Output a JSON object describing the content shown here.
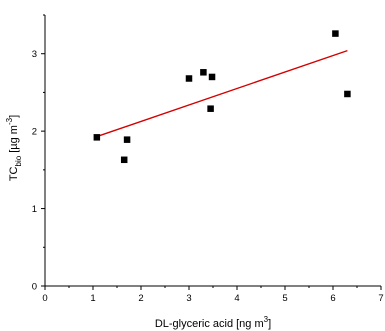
{
  "chart_data": {
    "type": "scatter",
    "xlabel": "DL-glyceric acid [ng m",
    "xlabel_sup": "3",
    "xlabel_end": "]",
    "ylabel_main": "TC",
    "ylabel_sub": "bio",
    "ylabel_rest": " [µg m",
    "ylabel_sup": "-3",
    "ylabel_end": "]",
    "xlim": [
      0,
      7
    ],
    "ylim": [
      0,
      3.5
    ],
    "x_ticks": [
      "0",
      "1",
      "2",
      "3",
      "4",
      "5",
      "6",
      "7"
    ],
    "y_ticks": [
      "0",
      "1",
      "2",
      "3"
    ],
    "points": [
      {
        "x": 1.08,
        "y": 1.92
      },
      {
        "x": 1.65,
        "y": 1.63
      },
      {
        "x": 1.71,
        "y": 1.89
      },
      {
        "x": 3.0,
        "y": 2.68
      },
      {
        "x": 3.3,
        "y": 2.76
      },
      {
        "x": 3.45,
        "y": 2.29
      },
      {
        "x": 3.48,
        "y": 2.7
      },
      {
        "x": 6.05,
        "y": 3.26
      },
      {
        "x": 6.3,
        "y": 2.48
      }
    ],
    "fit_line": {
      "x": [
        1.08,
        6.3
      ],
      "y": [
        1.93,
        3.04
      ],
      "color": "#d40000"
    },
    "grid": false,
    "legend": "none"
  }
}
